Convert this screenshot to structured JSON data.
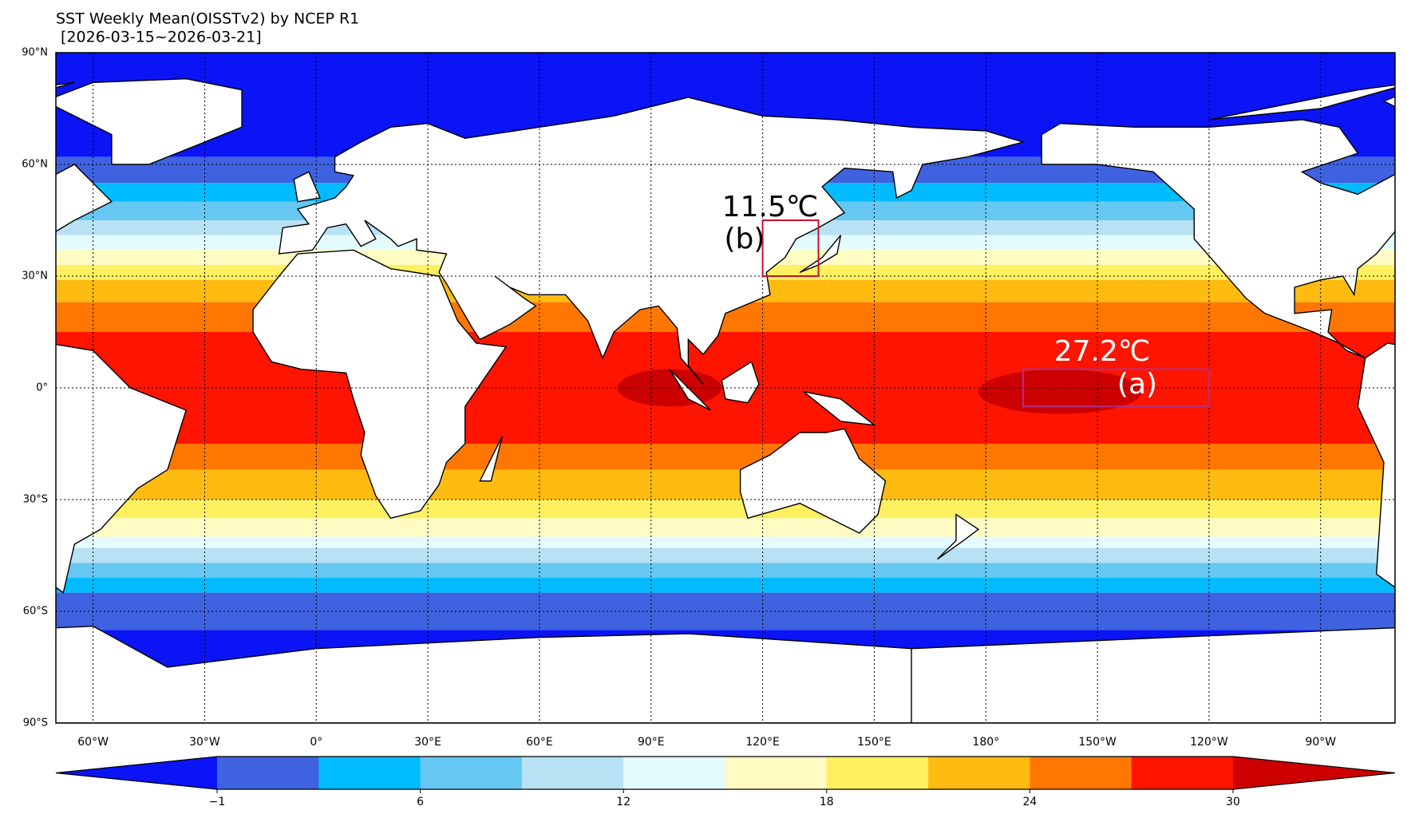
{
  "title": "SST Weekly Mean(OISSTv2) by NCEP R1",
  "subtitle": " [2026-03-15~2026-03-21]",
  "map": {
    "lon_ticks": [
      {
        "value": -60,
        "label": "60°W"
      },
      {
        "value": -30,
        "label": "30°W"
      },
      {
        "value": 0,
        "label": "0°"
      },
      {
        "value": 30,
        "label": "30°E"
      },
      {
        "value": 60,
        "label": "60°E"
      },
      {
        "value": 90,
        "label": "90°E"
      },
      {
        "value": 120,
        "label": "120°E"
      },
      {
        "value": 150,
        "label": "150°E"
      },
      {
        "value": 180,
        "label": "180°"
      },
      {
        "value": 210,
        "label": "150°W"
      },
      {
        "value": 240,
        "label": "120°W"
      },
      {
        "value": 270,
        "label": "90°W"
      }
    ],
    "lat_ticks": [
      {
        "value": 90,
        "label": "90°N"
      },
      {
        "value": 60,
        "label": "60°N"
      },
      {
        "value": 30,
        "label": "30°N"
      },
      {
        "value": 0,
        "label": "0°"
      },
      {
        "value": -30,
        "label": "30°S"
      },
      {
        "value": -60,
        "label": "60°S"
      },
      {
        "value": -90,
        "label": "90°S"
      }
    ]
  },
  "annotations": [
    {
      "value": "11.5℃",
      "label": "(b)",
      "color": "#000000",
      "box_color": "#c8102e"
    },
    {
      "value": "27.2℃",
      "label": "(a)",
      "color": "#ffffff",
      "box_color": "#b0308a"
    }
  ],
  "colorbar": {
    "colors": [
      "#0a14f5",
      "#3e62e0",
      "#00bbff",
      "#66c8f2",
      "#b8e2f4",
      "#e4fbff",
      "#fffbc2",
      "#fff060",
      "#ffbb10",
      "#ff7700",
      "#ff1400",
      "#cc0000"
    ],
    "ticks": [
      {
        "value": -1,
        "label": "−1"
      },
      6,
      12,
      18,
      24,
      30
    ]
  }
}
